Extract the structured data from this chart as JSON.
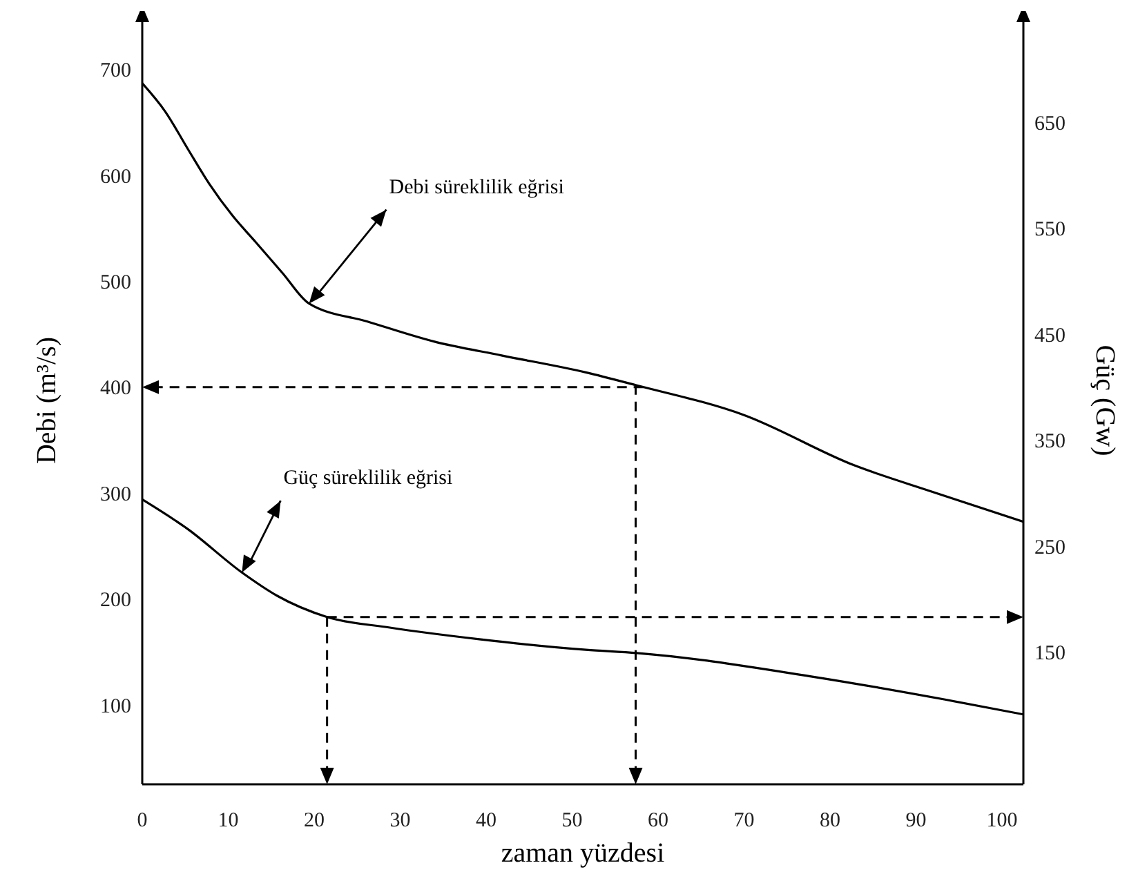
{
  "chart_data": {
    "type": "line",
    "xlabel": "zaman yüzdesi",
    "ylabel": "Debi (m³/s)",
    "y2label": "Güç (Gw)",
    "xlim": [
      0,
      102.5
    ],
    "xticks": [
      0,
      10,
      20,
      30,
      40,
      50,
      60,
      70,
      80,
      90,
      100
    ],
    "ylim": [
      25,
      750
    ],
    "yticks": [
      100,
      200,
      300,
      400,
      500,
      600,
      700
    ],
    "y2lim": [
      25,
      750
    ],
    "y2ticks": [
      150,
      250,
      350,
      450,
      550,
      650
    ],
    "marker": "none",
    "series": [
      {
        "color": "#000000",
        "x": [
          0,
          2.7,
          5.3,
          7.8,
          10.5,
          13.2,
          16.3,
          19.4,
          26.2,
          34,
          41.8,
          51.6,
          57.4,
          69.9,
          82.9,
          92,
          102.5
        ],
        "values": [
          687,
          660,
          625,
          592,
          562,
          537,
          508,
          479,
          462,
          443,
          430,
          414,
          402,
          374,
          326,
          301,
          273
        ]
      },
      {
        "color": "#000000",
        "axis": "y2",
        "x": [
          0,
          5.3,
          11.6,
          15.7,
          21.5,
          28.8,
          39.2,
          51.6,
          57.5,
          77.7,
          93.4,
          102.5
        ],
        "values": [
          294,
          266,
          225,
          203,
          183,
          173,
          162,
          152,
          149,
          127,
          105,
          91
        ]
      }
    ],
    "ref_lines": [
      {
        "axis": "y",
        "value": 400,
        "color": "#000000",
        "line_style": "dashed"
      },
      {
        "axis": "x",
        "value": 57.4,
        "color": "#000000",
        "line_style": "dashed"
      },
      {
        "axis": "y2",
        "value": 183,
        "color": "#000000",
        "line_style": "dashed"
      },
      {
        "axis": "x",
        "value": 21.5,
        "color": "#000000",
        "line_style": "dashed"
      }
    ],
    "annotations": [
      {
        "text": "Debi süreklilik eğrisi",
        "x": 19.4,
        "y": 479
      },
      {
        "text": "Güç süreklilik eğrisi",
        "x": 11.6,
        "y": 225
      }
    ]
  }
}
